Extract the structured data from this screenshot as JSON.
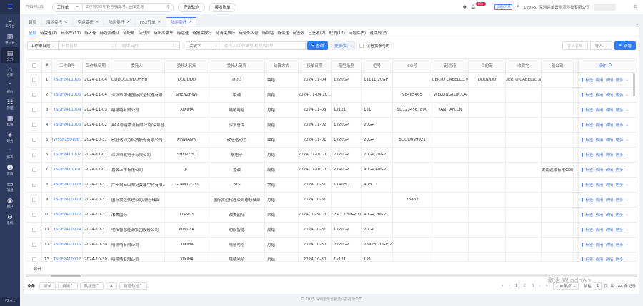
{
  "sidebar": {
    "items": [
      {
        "label": "工作台",
        "icon": "home-icon"
      },
      {
        "label": "供应链",
        "icon": "factory-icon"
      },
      {
        "label": "业务",
        "icon": "document-icon"
      },
      {
        "label": "仓库",
        "icon": "warehouse-icon"
      },
      {
        "label": "报价",
        "icon": "clipboard-icon"
      },
      {
        "label": "管理",
        "icon": "manage-icon"
      },
      {
        "label": "结算",
        "icon": "calculator-icon"
      },
      {
        "label": "财务",
        "icon": "finance-icon"
      },
      {
        "label": "报表",
        "icon": "report-icon"
      },
      {
        "label": "客商",
        "icon": "users-icon"
      },
      {
        "label": "消息",
        "icon": "message-icon"
      },
      {
        "label": "用户",
        "icon": "user-icon"
      },
      {
        "label": "系统",
        "icon": "gear-icon"
      }
    ],
    "version": "V2.0.1"
  },
  "topbar": {
    "brand": "FMS-PLUS",
    "search_type": "工作单",
    "search_placeholder": "工作号/SO号/柜号/提单号，回车查询",
    "track_btn": "查询轨迹",
    "bill_btn": "接收账单",
    "badge": "99+",
    "crm": "切换CRM",
    "company": "12345/ 深圳运单云物流科技有限公司"
  },
  "tabs": [
    {
      "label": "首页",
      "closable": false
    },
    {
      "label": "海运委托",
      "closable": true
    },
    {
      "label": "空运委托",
      "closable": true
    },
    {
      "label": "陆运委托",
      "closable": true
    },
    {
      "label": "FBX订单",
      "closable": true
    },
    {
      "label": "陆运委托",
      "closable": true,
      "active": true
    }
  ],
  "status_tabs": [
    "全部",
    "待受理(7)",
    "待派车(11)",
    "待入仓",
    "待残货确认",
    "待配载",
    "待分货",
    "待出库装车",
    "待运送",
    "待报关放行",
    "待清关放行",
    "待海外入仓",
    "待到站",
    "待派送",
    "待签收",
    "已签收(2)",
    "取消(12)",
    "问题件(5)",
    "退件/取消"
  ],
  "filters": {
    "date_type": "工作单日期",
    "start_placeholder": "开始日期",
    "end_placeholder": "结束日期",
    "keyword_type": "关键字",
    "keyword_placeholder": "委托人/工作单号/柜号/SO号",
    "query": "查询",
    "more": "更多(1)",
    "only_mine": "仅看我参与的",
    "export": "导出订单",
    "import": "导入",
    "add": "新增"
  },
  "table": {
    "headers": [
      "#",
      "工作单号",
      "工作单日期",
      "委托人",
      "委托人代码",
      "委托人简称",
      "结算方式",
      "接单日期",
      "箱型箱量",
      "柜号",
      "SO号",
      "起运港",
      "目的港",
      "收货地",
      "船公司",
      "操作"
    ],
    "rows": [
      [
        "1",
        "TSOF2411005",
        "2024-11-04",
        "DDDDDDDDDHHH",
        "DDDDDD",
        "DDD",
        "票结",
        "2024-11-04",
        "1x20GP",
        "11111/20GP",
        "",
        "PUERTO CABELLO,VE",
        "DDDDDD",
        "PUERTO CABELLO,VE",
        ""
      ],
      [
        "2",
        "TSOF2411006",
        "2024-11-04",
        "深圳市中通国际货运代理有限...",
        "SHENZHWT",
        "中通",
        "周结",
        "2024-11-04 20...",
        "",
        "",
        "98465465",
        "WELLINGTON,CA",
        "",
        "",
        ""
      ],
      [
        "3",
        "TSOF2411004",
        "2024-11-03",
        "嘻嘻嘻有限公司",
        "XIXIHA",
        "嘻嘻哈哈",
        "月结",
        "2024-11-03",
        "1x121",
        "121",
        "SD1234567890",
        "YANTIAN,CN",
        "",
        "",
        ""
      ],
      [
        "4",
        "TSOF2411003",
        "2024-11-02",
        "AAA粤运物流有限公司/深圳仓...",
        "",
        "深圳仓库",
        "周结",
        "2024-11-02",
        "1x20GP",
        "20GP",
        "",
        "",
        "",
        "",
        ""
      ],
      [
        "5",
        "YWYSF250108...",
        "2024-10-31",
        "欣旺达动力科技股份有限公司",
        "XINWANW",
        "欣旺达动力",
        "票结",
        "2024-11-01",
        "1x20GP",
        "20GP",
        "BOOO099921",
        "",
        "",
        "",
        ""
      ],
      [
        "6",
        "TSOF2411002",
        "2024-11-01",
        "深圳市航电子有限公司",
        "SHENZHQ",
        "航电子",
        "月结",
        "2024-11-01 20...",
        "2x20GP",
        "20GP,20GP",
        "",
        "",
        "",
        "",
        ""
      ],
      [
        "7",
        "TSOF2411001",
        "2024-11-01",
        "嘉诚上市有限公司",
        "JC",
        "嘉诚",
        "周结",
        "2024-11-01 20...",
        "2x40GP",
        "40GP,40GP",
        "",
        "",
        "",
        "",
        "湖南运输有限公司"
      ],
      [
        "8",
        "TSOF2410018",
        "2024-10-31",
        "广州白云山和记黄埔中药有限...",
        "GUANGZZO",
        "BYS",
        "票结",
        "2024-10-31",
        "1x40HQ",
        "40HQ",
        "",
        "",
        "",
        "",
        ""
      ],
      [
        "9",
        "TSOF2410019",
        "2024-10-31",
        "国际货运代理公司/德仓储部",
        "",
        "国际货运代理公司德仓储部",
        "月结",
        "2024-10-31",
        "",
        "",
        "23432",
        "",
        "",
        "",
        ""
      ],
      [
        "10",
        "TSOF2410022",
        "2024-10-31",
        "湘美国际",
        "XIANGS",
        "湘美国际",
        "票结",
        "2024-10-31 20...",
        "2+ 1x20GP,1x...",
        "40GP,20GP",
        "",
        "",
        "",
        "",
        ""
      ],
      [
        "11",
        "TSOF2410024",
        "2024-10-31",
        "明阳智慧能源集团股份公司",
        "MINGYA",
        "明阳智能",
        "周结",
        "2024-10-31",
        "1x20GP",
        "20GP",
        "",
        "",
        "",
        "",
        ""
      ],
      [
        "12",
        "TSOF2410016",
        "2024-10-30",
        "嘻嘻嘻有限公司",
        "XIXIHA",
        "嘻嘻哈哈",
        "月结",
        "2024-10-30",
        "2x20GP",
        "23423/20GP,23...",
        "",
        "",
        "",
        "",
        ""
      ],
      [
        "13",
        "TSOF2410017",
        "2024-10-30",
        "嘻嘻嘻有限公司",
        "XIXIHA",
        "嘻嘻哈哈",
        "月结",
        "2024-10-30",
        "1x121",
        "121",
        "",
        "",
        "",
        "",
        ""
      ]
    ],
    "ops": [
      "标签",
      "费用",
      "详情",
      "更多"
    ],
    "total_label": "合计"
  },
  "bottom": {
    "label": "业务",
    "buttons": [
      "接单",
      "费用",
      "贴标签",
      "▲",
      "新增轨迹"
    ],
    "pages": [
      "1",
      "2",
      "3"
    ],
    "current_page": "1",
    "page_size": "100条/页",
    "goto": "前往",
    "goto_value": "1",
    "page_unit": "页",
    "total": "共 244 条记录"
  },
  "footer": "© 2025 深圳运单云物流科技有限公司",
  "watermark": "激活 Windows",
  "colors": {
    "accent": "#2f7cf6",
    "sidebar": "#2e3b5e"
  }
}
